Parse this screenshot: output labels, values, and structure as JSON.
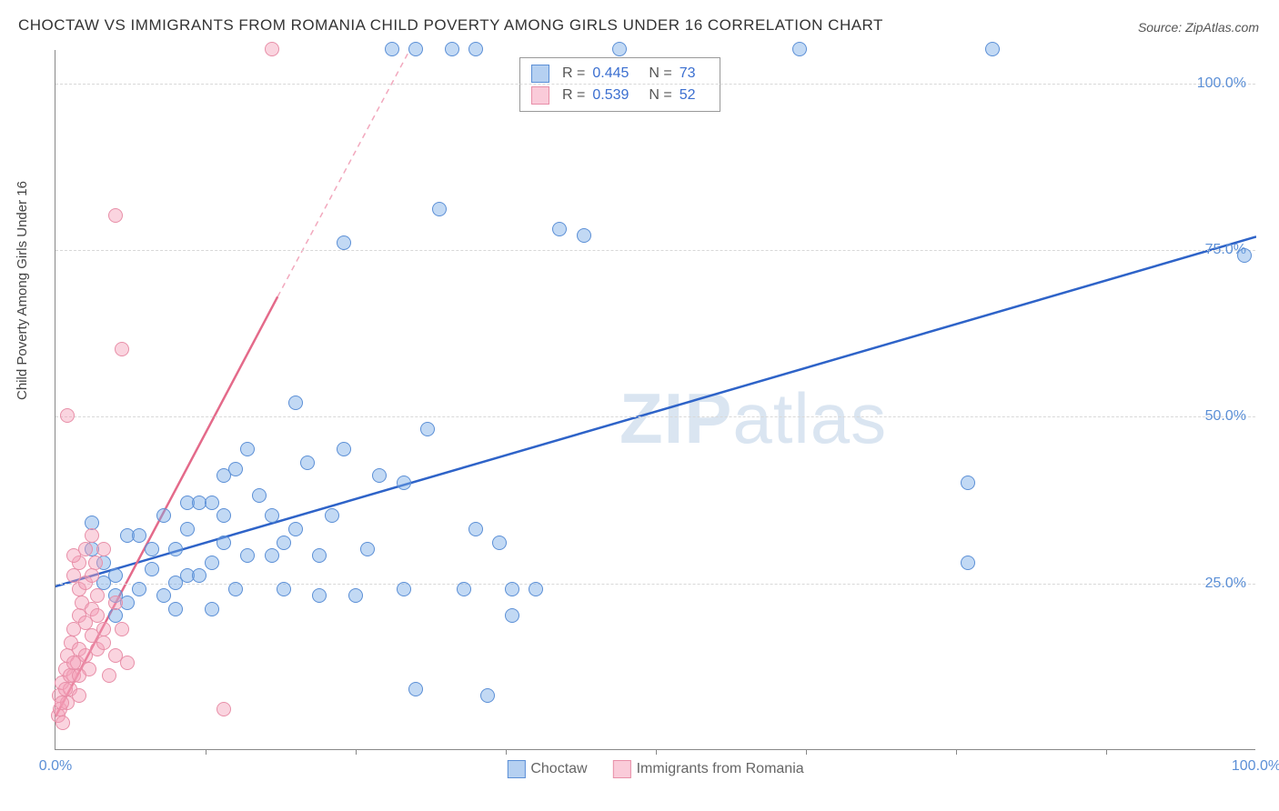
{
  "title": "CHOCTAW VS IMMIGRANTS FROM ROMANIA CHILD POVERTY AMONG GIRLS UNDER 16 CORRELATION CHART",
  "source": "Source: ZipAtlas.com",
  "ylabel": "Child Poverty Among Girls Under 16",
  "watermark_a": "ZIP",
  "watermark_b": "atlas",
  "chart": {
    "type": "scatter",
    "xlim": [
      0,
      100
    ],
    "ylim": [
      0,
      105
    ],
    "yticks": [
      {
        "v": 25,
        "label": "25.0%"
      },
      {
        "v": 50,
        "label": "50.0%"
      },
      {
        "v": 75,
        "label": "75.0%"
      },
      {
        "v": 100,
        "label": "100.0%"
      }
    ],
    "xticks_major": [
      {
        "v": 0,
        "label": "0.0%"
      },
      {
        "v": 100,
        "label": "100.0%"
      }
    ],
    "xticks_minor": [
      12.5,
      25,
      37.5,
      50,
      62.5,
      75,
      87.5
    ],
    "background_color": "#ffffff",
    "grid_color": "#d8d8d8",
    "grid_dash": "4,4"
  },
  "series": [
    {
      "name": "Choctaw",
      "color_fill": "rgba(120,170,230,0.45)",
      "color_stroke": "#5b8fd6",
      "trend": {
        "x1": -2,
        "y1": 23.5,
        "x2": 100,
        "y2": 77,
        "stroke": "#2e63c8",
        "width": 2.5
      },
      "R": "0.445",
      "N": "73",
      "points": [
        [
          3,
          30
        ],
        [
          4,
          28
        ],
        [
          5,
          26
        ],
        [
          5,
          20
        ],
        [
          5,
          23
        ],
        [
          6,
          22
        ],
        [
          6,
          32
        ],
        [
          7,
          32
        ],
        [
          8,
          27
        ],
        [
          8,
          30
        ],
        [
          9,
          23
        ],
        [
          9,
          35
        ],
        [
          10,
          21
        ],
        [
          10,
          30
        ],
        [
          11,
          26
        ],
        [
          11,
          37
        ],
        [
          12,
          37
        ],
        [
          12,
          26
        ],
        [
          13,
          37
        ],
        [
          13,
          21
        ],
        [
          14,
          35
        ],
        [
          15,
          24
        ],
        [
          15,
          42
        ],
        [
          16,
          45
        ],
        [
          17,
          38
        ],
        [
          18,
          29
        ],
        [
          18,
          35
        ],
        [
          19,
          31
        ],
        [
          19,
          24
        ],
        [
          20,
          33
        ],
        [
          20,
          52
        ],
        [
          21,
          43
        ],
        [
          22,
          29
        ],
        [
          22,
          23
        ],
        [
          23,
          35
        ],
        [
          24,
          45
        ],
        [
          24,
          76
        ],
        [
          25,
          23
        ],
        [
          26,
          30
        ],
        [
          27,
          41
        ],
        [
          28,
          105
        ],
        [
          29,
          40
        ],
        [
          29,
          24
        ],
        [
          30,
          105
        ],
        [
          30,
          9
        ],
        [
          31,
          48
        ],
        [
          32,
          81
        ],
        [
          33,
          105
        ],
        [
          34,
          24
        ],
        [
          35,
          105
        ],
        [
          35,
          33
        ],
        [
          36,
          8
        ],
        [
          37,
          31
        ],
        [
          38,
          20
        ],
        [
          38,
          24
        ],
        [
          40,
          24
        ],
        [
          42,
          78
        ],
        [
          44,
          77
        ],
        [
          47,
          105
        ],
        [
          62,
          105
        ],
        [
          7,
          24
        ],
        [
          13,
          28
        ],
        [
          14,
          41
        ],
        [
          16,
          29
        ],
        [
          10,
          25
        ],
        [
          11,
          33
        ],
        [
          14,
          31
        ],
        [
          76,
          28
        ],
        [
          76,
          40
        ],
        [
          78,
          105
        ],
        [
          99,
          74
        ],
        [
          3,
          34
        ],
        [
          4,
          25
        ]
      ]
    },
    {
      "name": "Immigrants from Romania",
      "color_fill": "rgba(245,160,185,0.45)",
      "color_stroke": "#e88fa8",
      "trend_solid": {
        "x1": 0,
        "y1": 5,
        "x2": 18.5,
        "y2": 68,
        "stroke": "#e46a8a",
        "width": 2.5
      },
      "trend_dash": {
        "x1": 18.5,
        "y1": 68,
        "x2": 29.5,
        "y2": 105,
        "stroke": "#f2a8bd",
        "width": 1.5,
        "dash": "6,5"
      },
      "R": "0.539",
      "N": "52",
      "points": [
        [
          0.2,
          5
        ],
        [
          0.3,
          8
        ],
        [
          0.4,
          6
        ],
        [
          0.5,
          10
        ],
        [
          0.6,
          4
        ],
        [
          0.8,
          12
        ],
        [
          1,
          7
        ],
        [
          1,
          14
        ],
        [
          1.2,
          9
        ],
        [
          1.3,
          16
        ],
        [
          1.5,
          11
        ],
        [
          1.5,
          18
        ],
        [
          1.8,
          13
        ],
        [
          2,
          8
        ],
        [
          2,
          15
        ],
        [
          2,
          20
        ],
        [
          2,
          28
        ],
        [
          2.2,
          22
        ],
        [
          2.5,
          14
        ],
        [
          2.5,
          19
        ],
        [
          2.5,
          30
        ],
        [
          2.8,
          12
        ],
        [
          3,
          17
        ],
        [
          3,
          21
        ],
        [
          3,
          32
        ],
        [
          3.3,
          28
        ],
        [
          3.5,
          15
        ],
        [
          3.5,
          23
        ],
        [
          4,
          18
        ],
        [
          4,
          30
        ],
        [
          1,
          50
        ],
        [
          1.5,
          26
        ],
        [
          1.5,
          29
        ],
        [
          2,
          24
        ],
        [
          2.5,
          25
        ],
        [
          3,
          26
        ],
        [
          3.5,
          20
        ],
        [
          4,
          16
        ],
        [
          4.5,
          11
        ],
        [
          5,
          14
        ],
        [
          5,
          22
        ],
        [
          5.5,
          18
        ],
        [
          6,
          13
        ],
        [
          5,
          80
        ],
        [
          5.5,
          60
        ],
        [
          14,
          6
        ],
        [
          18,
          105
        ],
        [
          0.5,
          7
        ],
        [
          0.8,
          9
        ],
        [
          1.2,
          11
        ],
        [
          1.5,
          13
        ],
        [
          2,
          11
        ]
      ]
    }
  ],
  "legend_top": {
    "rows": [
      {
        "swatch": "blue",
        "R": "0.445",
        "N": "73"
      },
      {
        "swatch": "pink",
        "R": "0.539",
        "N": "52"
      }
    ],
    "labels": {
      "R": "R =",
      "N": "N ="
    }
  },
  "legend_bottom": [
    {
      "swatch": "blue",
      "label": "Choctaw"
    },
    {
      "swatch": "pink",
      "label": "Immigrants from Romania"
    }
  ]
}
